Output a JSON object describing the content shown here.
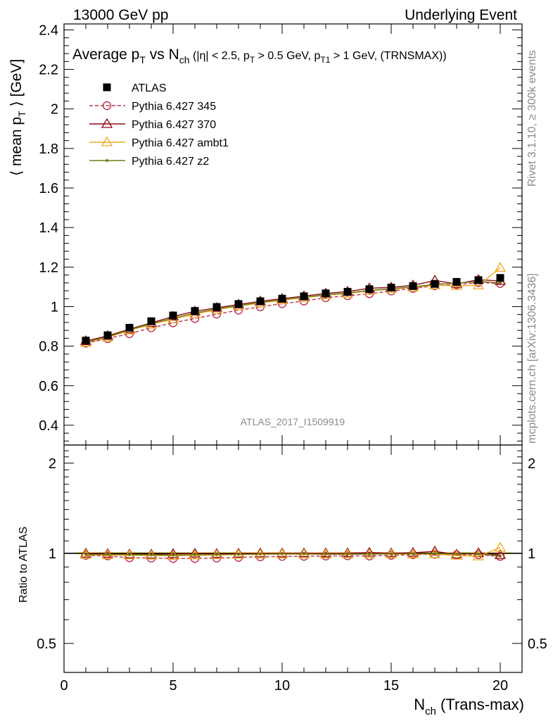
{
  "header": {
    "left": "13000 GeV pp",
    "right": "Underlying Event"
  },
  "side_labels": {
    "rivet": "Rivet 3.1.10, ≥ 300k events",
    "mcplots": "mcplots.cern.ch [arXiv:1306.3436]"
  },
  "analysis_id": "ATLAS_2017_I1509919",
  "chart_data": [
    {
      "type": "line",
      "title": "Average p_T vs N_ch (|η| < 2.5, p_T > 0.5 GeV, p_T1 > 1 GeV, (TRNSMAX))",
      "title_parts": {
        "a": "Average p",
        "a_sub": "T",
        "b": " vs N",
        "b_sub": "ch",
        "c": " (|η| < 2.5, p",
        "c_sub": "T",
        "d": " > 0.5 GeV, p",
        "d_sub": "T1",
        "e": " > 1 GeV, (TRNSMAX))"
      },
      "ylabel_parts": {
        "a": "⟨ mean p",
        "sub": "T",
        "b": " ⟩ [GeV]"
      },
      "xlabel": "",
      "xlim": [
        0,
        21
      ],
      "ylim": [
        0.3,
        2.43
      ],
      "y_ticks": [
        0.4,
        0.6,
        0.8,
        1,
        1.2,
        1.4,
        1.6,
        1.8,
        2,
        2.2,
        2.4
      ],
      "y_tick_labels": [
        "0.4",
        "0.6",
        "0.8",
        "1",
        "1.2",
        "1.4",
        "1.6",
        "1.8",
        "2",
        "2.2",
        "2.4"
      ],
      "legend_position": "top-left",
      "x": [
        1,
        2,
        3,
        4,
        5,
        6,
        7,
        8,
        9,
        10,
        11,
        12,
        13,
        14,
        15,
        16,
        17,
        18,
        19,
        20
      ],
      "series": [
        {
          "name": "ATLAS",
          "color": "#000000",
          "marker": "square",
          "values": [
            0.828,
            0.855,
            0.893,
            0.926,
            0.955,
            0.978,
            0.998,
            1.013,
            1.027,
            1.04,
            1.052,
            1.067,
            1.075,
            1.088,
            1.096,
            1.104,
            1.115,
            1.125,
            1.134,
            1.145
          ]
        },
        {
          "name": "Pythia 6.427 345",
          "color": "#c0304a",
          "marker": "circle-open",
          "dash": true,
          "values": [
            0.815,
            0.838,
            0.863,
            0.893,
            0.918,
            0.94,
            0.962,
            0.982,
            0.999,
            1.015,
            1.028,
            1.045,
            1.055,
            1.065,
            1.079,
            1.092,
            1.106,
            1.111,
            1.122,
            1.117
          ]
        },
        {
          "name": "Pythia 6.427 370",
          "color": "#8b0a14",
          "marker": "triangle-open",
          "values": [
            0.826,
            0.852,
            0.886,
            0.918,
            0.95,
            0.976,
            0.994,
            1.011,
            1.027,
            1.04,
            1.053,
            1.067,
            1.076,
            1.093,
            1.097,
            1.108,
            1.132,
            1.115,
            1.136,
            1.13
          ]
        },
        {
          "name": "Pythia 6.427 ambt1",
          "color": "#f0a820",
          "marker": "triangle-open",
          "values": [
            0.818,
            0.844,
            0.88,
            0.91,
            0.937,
            0.962,
            0.985,
            1.003,
            1.018,
            1.033,
            1.045,
            1.058,
            1.066,
            1.08,
            1.089,
            1.097,
            1.108,
            1.105,
            1.108,
            1.196
          ]
        },
        {
          "name": "Pythia 6.427 z2",
          "color": "#6b7a10",
          "marker": "dot",
          "values": [
            0.82,
            0.847,
            0.883,
            0.914,
            0.942,
            0.967,
            0.988,
            1.005,
            1.021,
            1.035,
            1.047,
            1.06,
            1.069,
            1.082,
            1.09,
            1.1,
            1.113,
            1.118,
            1.128,
            1.12
          ]
        }
      ]
    },
    {
      "type": "line",
      "title": "",
      "ylabel": "Ratio to ATLAS",
      "xlabel_parts": {
        "a": "N",
        "sub": "ch",
        "b": " (Trans-max)"
      },
      "xlim": [
        0,
        21
      ],
      "ylim": [
        0.4,
        2.3
      ],
      "log_y": true,
      "x_ticks": [
        0,
        5,
        10,
        15,
        20
      ],
      "x_tick_labels": [
        "0",
        "5",
        "10",
        "15",
        "20"
      ],
      "y_ticks": [
        0.5,
        1,
        2
      ],
      "y_tick_labels": [
        "0.5",
        "1",
        "2"
      ],
      "x": [
        1,
        2,
        3,
        4,
        5,
        6,
        7,
        8,
        9,
        10,
        11,
        12,
        13,
        14,
        15,
        16,
        17,
        18,
        19,
        20
      ],
      "reference_band_color": "#ffee66",
      "series": [
        {
          "name": "Pythia 6.427 345",
          "color": "#c0304a",
          "values": [
            0.984,
            0.98,
            0.966,
            0.964,
            0.961,
            0.961,
            0.964,
            0.969,
            0.973,
            0.976,
            0.977,
            0.979,
            0.981,
            0.979,
            0.984,
            0.989,
            0.992,
            0.988,
            0.989,
            0.976
          ]
        },
        {
          "name": "Pythia 6.427 370",
          "color": "#8b0a14",
          "values": [
            0.998,
            0.996,
            0.992,
            0.991,
            0.995,
            0.998,
            0.996,
            0.998,
            1.0,
            1.0,
            1.001,
            1.0,
            1.001,
            1.005,
            1.001,
            1.004,
            1.015,
            0.991,
            1.002,
            0.987
          ]
        },
        {
          "name": "Pythia 6.427 ambt1",
          "color": "#f0a820",
          "values": [
            0.988,
            0.987,
            0.985,
            0.983,
            0.981,
            0.984,
            0.987,
            0.99,
            0.991,
            0.993,
            0.993,
            0.992,
            0.992,
            0.993,
            0.994,
            0.994,
            0.994,
            0.982,
            0.977,
            1.045
          ]
        },
        {
          "name": "Pythia 6.427 z2",
          "color": "#6b7a10",
          "values": [
            0.99,
            0.991,
            0.989,
            0.987,
            0.986,
            0.989,
            0.99,
            0.992,
            0.994,
            0.995,
            0.995,
            0.993,
            0.994,
            0.994,
            0.995,
            0.996,
            0.998,
            0.994,
            0.995,
            0.978
          ]
        }
      ]
    }
  ]
}
